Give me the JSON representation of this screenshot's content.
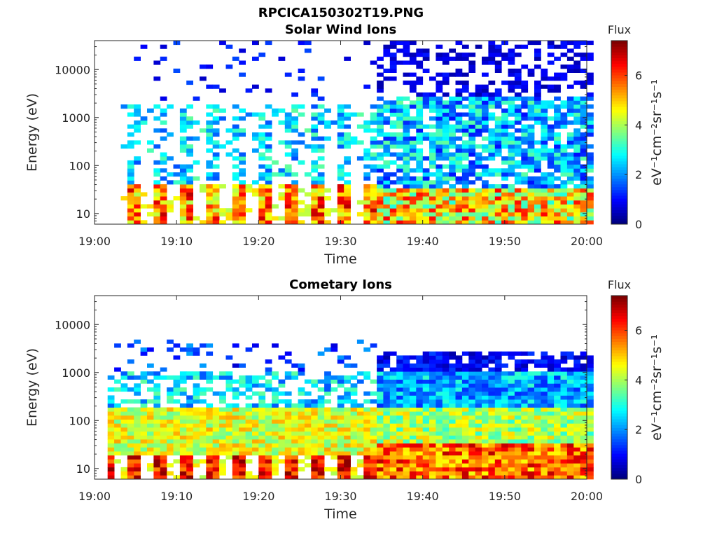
{
  "figure_title": "RPCICA150302T19.PNG",
  "chart_data": [
    {
      "type": "heatmap",
      "title": "Solar Wind Ions",
      "xlabel": "Time",
      "ylabel": "Energy (eV)",
      "x_ticks": [
        "19:00",
        "19:10",
        "19:20",
        "19:30",
        "19:40",
        "19:50",
        "20:00"
      ],
      "x_range": [
        "19:00",
        "20:00"
      ],
      "y_scale": "log",
      "y_ticks": [
        "10",
        "100",
        "1000",
        "10000"
      ],
      "y_range": [
        6,
        40000
      ],
      "colorbar": {
        "label_top": "Flux",
        "label": "eV⁻¹cm⁻²sr⁻¹s⁻¹",
        "ticks": [
          "0",
          "2",
          "4",
          "6"
        ],
        "range": [
          0,
          7.4
        ],
        "colormap": "jet"
      },
      "pattern": "pulsed low-energy flux 19:03–19:34 (mostly 10–40 eV, sparse 50–2000 eV), continuous bands 19:35–20:00 with 10–30 eV peak ~5 and 50–2000 eV ~2–3"
    },
    {
      "type": "heatmap",
      "title": "Cometary Ions",
      "xlabel": "Time",
      "ylabel": "Energy (eV)",
      "x_ticks": [
        "19:00",
        "19:10",
        "19:20",
        "19:30",
        "19:40",
        "19:50",
        "20:00"
      ],
      "x_range": [
        "19:00",
        "20:00"
      ],
      "y_scale": "log",
      "y_ticks": [
        "10",
        "100",
        "1000",
        "10000"
      ],
      "y_range": [
        6,
        40000
      ],
      "colorbar": {
        "label_top": "Flux",
        "label": "eV⁻¹cm⁻²sr⁻¹s⁻¹",
        "ticks": [
          "0",
          "2",
          "4",
          "6"
        ],
        "range": [
          0,
          7.4
        ],
        "colormap": "jet"
      },
      "pattern": "pulses every ~3 min 19:03–19:34 peaking ~7 at 8–20 eV, broad 4–5 flux 30–150 eV; continuous 19:35–20:00 with ~6 at 10–30 eV, ~3–4 up to 300 eV, ~1 above 1000 eV"
    }
  ]
}
